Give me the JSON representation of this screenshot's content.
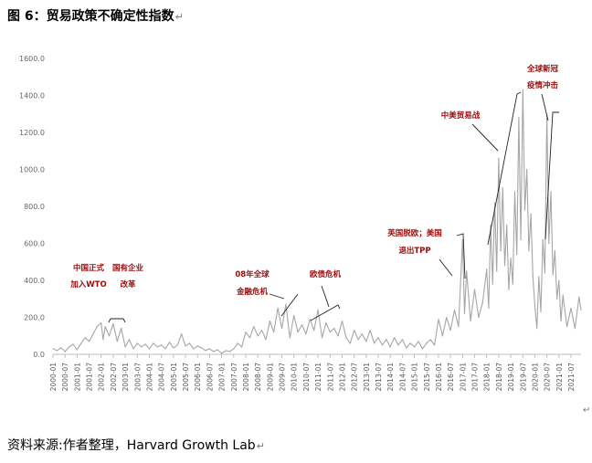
{
  "figure": {
    "title": "图 6：贸易政策不确定性指数",
    "source": "资料来源:作者整理，Harvard Growth Lab",
    "para_mark": "↵"
  },
  "chart_data": {
    "type": "line",
    "title": "",
    "xlabel": "",
    "ylabel": "",
    "ylim": [
      0,
      1600
    ],
    "yticks": [
      "0.0",
      "200.0",
      "400.0",
      "600.0",
      "800.0",
      "1000.0",
      "1200.0",
      "1400.0",
      "1600.0"
    ],
    "grid": false,
    "legend": "none",
    "line_color": "#a6a6a6",
    "annotation_color": "#9b0a0a",
    "x_range": [
      "2000-01",
      "2021-12"
    ],
    "xticks": [
      "2000-01",
      "2000-07",
      "2001-01",
      "2001-07",
      "2002-01",
      "2002-07",
      "2003-01",
      "2003-07",
      "2004-01",
      "2004-07",
      "2005-01",
      "2005-07",
      "2006-01",
      "2006-07",
      "2007-01",
      "2007-07",
      "2008-01",
      "2008-07",
      "2009-01",
      "2009-07",
      "2010-01",
      "2010-07",
      "2011-01",
      "2011-07",
      "2012-01",
      "2012-07",
      "2013-01",
      "2013-07",
      "2014-01",
      "2014-07",
      "2015-01",
      "2015-07",
      "2016-01",
      "2016-07",
      "2017-01",
      "2017-07",
      "2018-01",
      "2018-07",
      "2019-01",
      "2019-07",
      "2020-01",
      "2020-07",
      "2021-01",
      "2021-07"
    ],
    "series": [
      {
        "points": [
          [
            "2000-01",
            30
          ],
          [
            "2000-03",
            20
          ],
          [
            "2000-05",
            35
          ],
          [
            "2000-07",
            15
          ],
          [
            "2000-09",
            40
          ],
          [
            "2000-11",
            55
          ],
          [
            "2001-01",
            25
          ],
          [
            "2001-03",
            60
          ],
          [
            "2001-05",
            90
          ],
          [
            "2001-07",
            70
          ],
          [
            "2001-09",
            110
          ],
          [
            "2001-11",
            150
          ],
          [
            "2002-01",
            170
          ],
          [
            "2002-02",
            80
          ],
          [
            "2002-03",
            150
          ],
          [
            "2002-05",
            100
          ],
          [
            "2002-07",
            165
          ],
          [
            "2002-09",
            70
          ],
          [
            "2002-11",
            140
          ],
          [
            "2003-01",
            40
          ],
          [
            "2003-03",
            80
          ],
          [
            "2003-05",
            30
          ],
          [
            "2003-07",
            60
          ],
          [
            "2003-09",
            40
          ],
          [
            "2003-11",
            55
          ],
          [
            "2004-01",
            30
          ],
          [
            "2004-03",
            60
          ],
          [
            "2004-05",
            40
          ],
          [
            "2004-07",
            50
          ],
          [
            "2004-09",
            30
          ],
          [
            "2004-11",
            65
          ],
          [
            "2005-01",
            35
          ],
          [
            "2005-03",
            50
          ],
          [
            "2005-05",
            110
          ],
          [
            "2005-07",
            45
          ],
          [
            "2005-09",
            60
          ],
          [
            "2005-11",
            30
          ],
          [
            "2006-01",
            45
          ],
          [
            "2006-03",
            35
          ],
          [
            "2006-05",
            20
          ],
          [
            "2006-07",
            30
          ],
          [
            "2006-09",
            15
          ],
          [
            "2006-11",
            25
          ],
          [
            "2007-01",
            5
          ],
          [
            "2007-03",
            20
          ],
          [
            "2007-05",
            15
          ],
          [
            "2007-07",
            30
          ],
          [
            "2007-09",
            60
          ],
          [
            "2007-11",
            40
          ],
          [
            "2008-01",
            120
          ],
          [
            "2008-03",
            90
          ],
          [
            "2008-05",
            150
          ],
          [
            "2008-07",
            100
          ],
          [
            "2008-09",
            130
          ],
          [
            "2008-11",
            80
          ],
          [
            "2009-01",
            180
          ],
          [
            "2009-03",
            120
          ],
          [
            "2009-05",
            250
          ],
          [
            "2009-07",
            140
          ],
          [
            "2009-09",
            270
          ],
          [
            "2009-11",
            90
          ],
          [
            "2010-01",
            210
          ],
          [
            "2010-03",
            120
          ],
          [
            "2010-05",
            160
          ],
          [
            "2010-07",
            110
          ],
          [
            "2010-09",
            190
          ],
          [
            "2010-11",
            130
          ],
          [
            "2011-01",
            240
          ],
          [
            "2011-03",
            90
          ],
          [
            "2011-05",
            170
          ],
          [
            "2011-07",
            120
          ],
          [
            "2011-09",
            140
          ],
          [
            "2011-11",
            100
          ],
          [
            "2012-01",
            180
          ],
          [
            "2012-03",
            90
          ],
          [
            "2012-05",
            60
          ],
          [
            "2012-07",
            130
          ],
          [
            "2012-09",
            80
          ],
          [
            "2012-11",
            110
          ],
          [
            "2013-01",
            70
          ],
          [
            "2013-03",
            130
          ],
          [
            "2013-05",
            60
          ],
          [
            "2013-07",
            90
          ],
          [
            "2013-09",
            50
          ],
          [
            "2013-11",
            80
          ],
          [
            "2014-01",
            40
          ],
          [
            "2014-03",
            90
          ],
          [
            "2014-05",
            50
          ],
          [
            "2014-07",
            80
          ],
          [
            "2014-09",
            35
          ],
          [
            "2014-11",
            60
          ],
          [
            "2015-01",
            40
          ],
          [
            "2015-03",
            70
          ],
          [
            "2015-05",
            30
          ],
          [
            "2015-07",
            60
          ],
          [
            "2015-09",
            80
          ],
          [
            "2015-11",
            50
          ],
          [
            "2016-01",
            190
          ],
          [
            "2016-03",
            100
          ],
          [
            "2016-05",
            200
          ],
          [
            "2016-07",
            130
          ],
          [
            "2016-09",
            240
          ],
          [
            "2016-11",
            150
          ],
          [
            "2017-01",
            620
          ],
          [
            "2017-02",
            220
          ],
          [
            "2017-03",
            450
          ],
          [
            "2017-05",
            180
          ],
          [
            "2017-07",
            350
          ],
          [
            "2017-09",
            200
          ],
          [
            "2017-11",
            280
          ],
          [
            "2018-01",
            460
          ],
          [
            "2018-02",
            250
          ],
          [
            "2018-03",
            700
          ],
          [
            "2018-04",
            380
          ],
          [
            "2018-05",
            820
          ],
          [
            "2018-06",
            450
          ],
          [
            "2018-07",
            1060
          ],
          [
            "2018-08",
            560
          ],
          [
            "2018-09",
            900
          ],
          [
            "2018-10",
            480
          ],
          [
            "2018-11",
            700
          ],
          [
            "2018-12",
            350
          ],
          [
            "2019-01",
            520
          ],
          [
            "2019-02",
            380
          ],
          [
            "2019-03",
            880
          ],
          [
            "2019-04",
            540
          ],
          [
            "2019-05",
            1280
          ],
          [
            "2019-06",
            620
          ],
          [
            "2019-07",
            1430
          ],
          [
            "2019-08",
            780
          ],
          [
            "2019-09",
            1000
          ],
          [
            "2019-10",
            560
          ],
          [
            "2019-11",
            760
          ],
          [
            "2019-12",
            420
          ],
          [
            "2020-01",
            260
          ],
          [
            "2020-02",
            140
          ],
          [
            "2020-03",
            420
          ],
          [
            "2020-04",
            230
          ],
          [
            "2020-05",
            620
          ],
          [
            "2020-06",
            440
          ],
          [
            "2020-07",
            1300
          ],
          [
            "2020-08",
            600
          ],
          [
            "2020-09",
            880
          ],
          [
            "2020-10",
            430
          ],
          [
            "2020-11",
            560
          ],
          [
            "2020-12",
            300
          ],
          [
            "2021-01",
            400
          ],
          [
            "2021-02",
            180
          ],
          [
            "2021-03",
            320
          ],
          [
            "2021-05",
            150
          ],
          [
            "2021-07",
            250
          ],
          [
            "2021-09",
            140
          ],
          [
            "2021-11",
            310
          ],
          [
            "2021-12",
            240
          ]
        ]
      }
    ],
    "annotations": [
      {
        "lines": [
          "中国正式",
          "加入WTO"
        ],
        "at": "2001-11"
      },
      {
        "lines": [
          "国有企业",
          "改革"
        ],
        "at": "2002-07"
      },
      {
        "lines": [
          "08年全球",
          "金融危机"
        ],
        "at": "2008-09"
      },
      {
        "lines": [
          "欧债危机"
        ],
        "at": "2011-01"
      },
      {
        "lines": [
          "英国脱欧；美国",
          "退出TPP"
        ],
        "at": "2016-07"
      },
      {
        "lines": [
          "中美贸易战"
        ],
        "at": "2018-07"
      },
      {
        "lines": [
          "全球新冠",
          "疫情冲击"
        ],
        "at": "2020-01"
      }
    ]
  }
}
